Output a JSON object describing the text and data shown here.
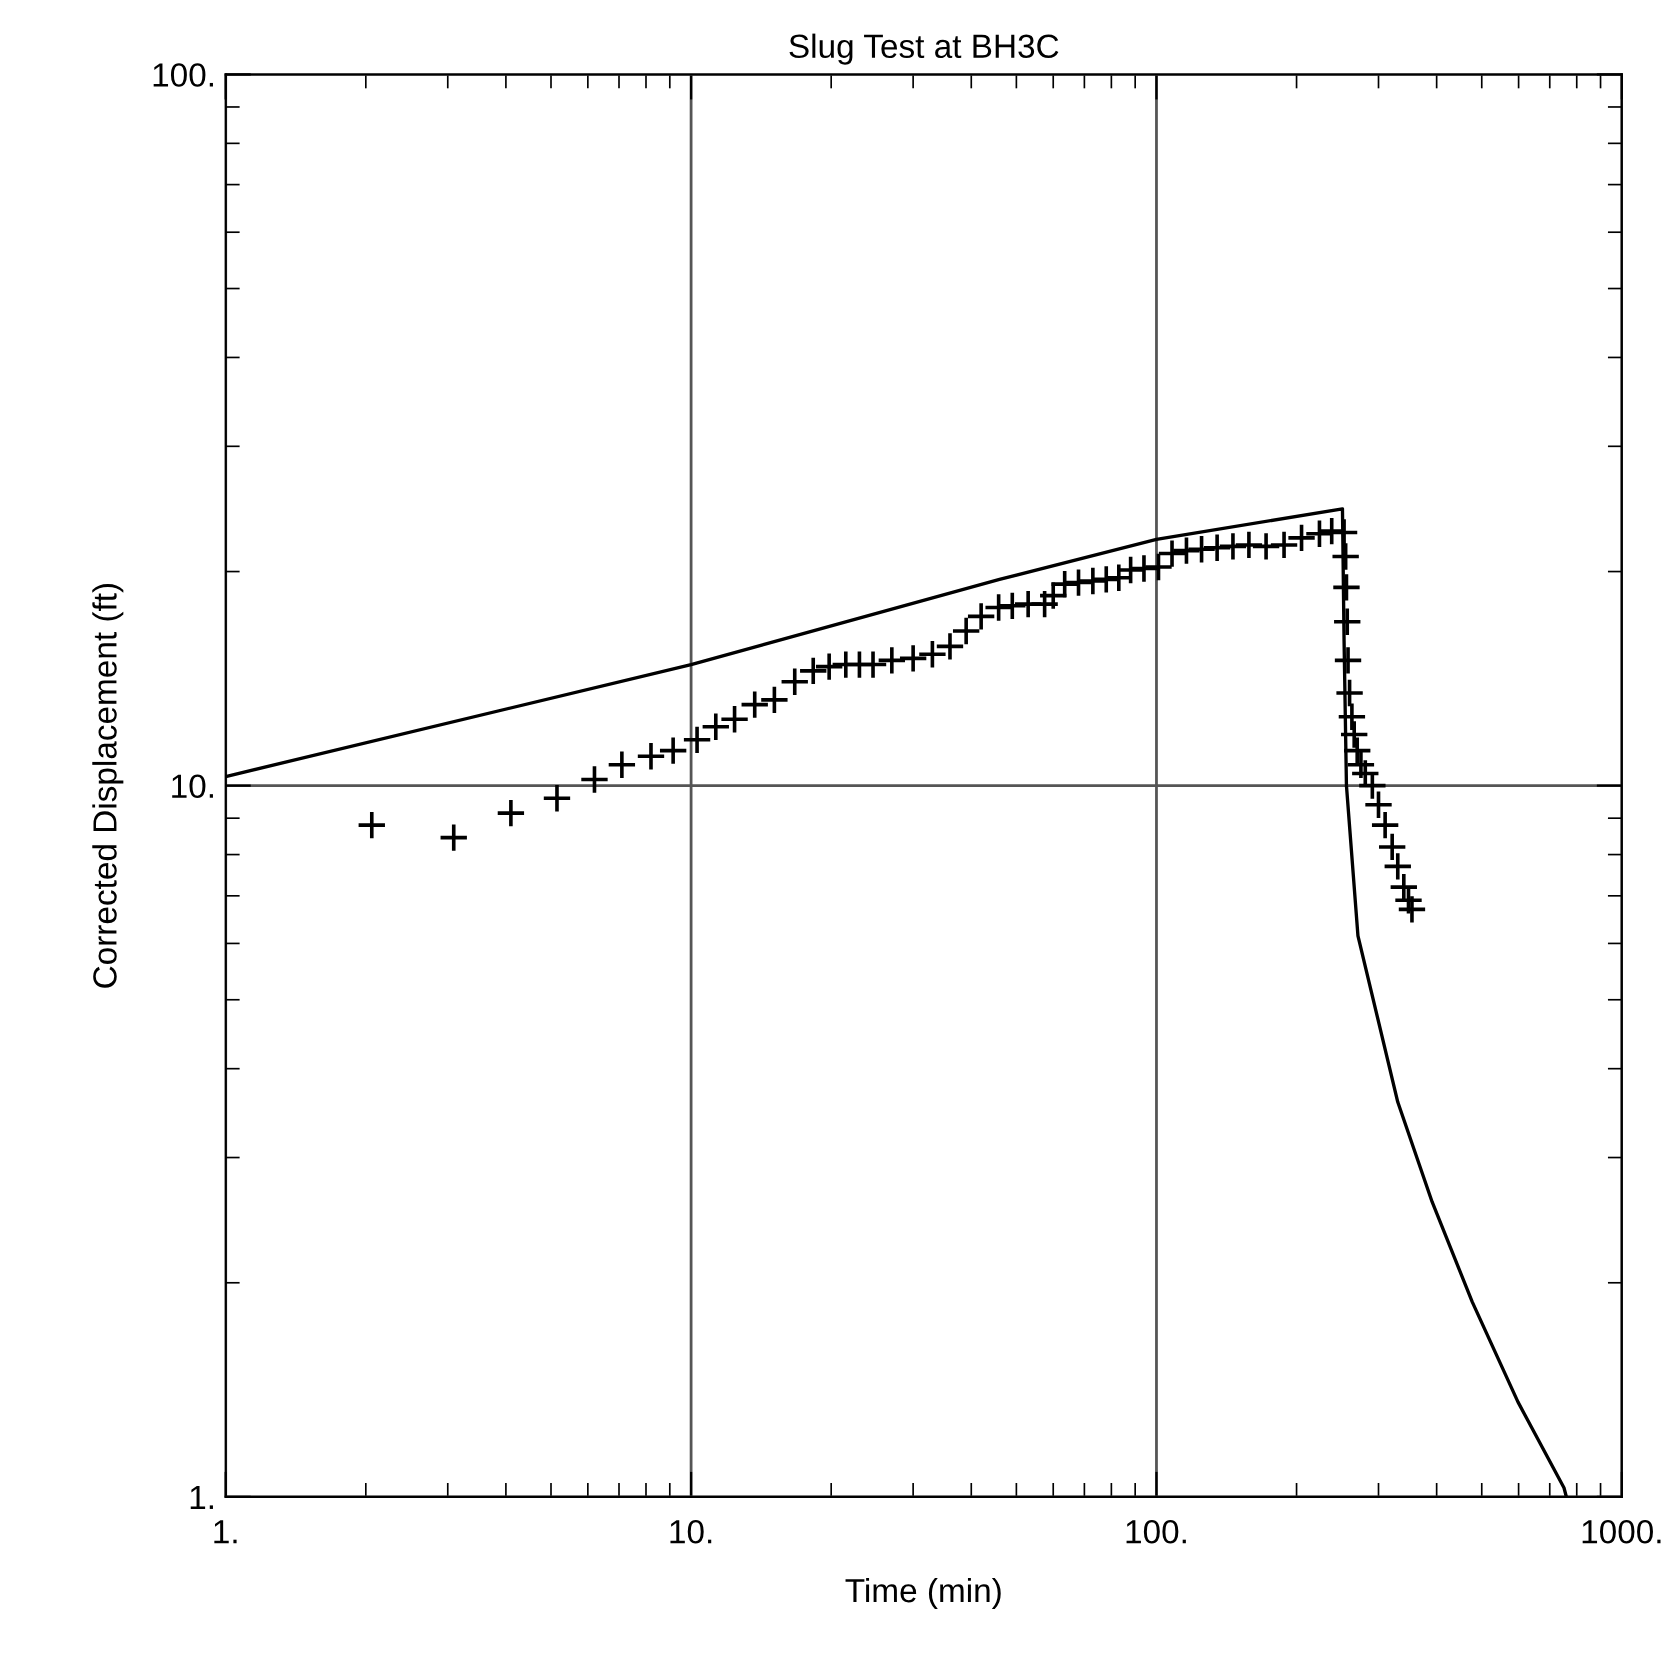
{
  "chart_data": {
    "type": "scatter",
    "title": "Slug Test at BH3C",
    "xlabel": "Time (min)",
    "ylabel": "Corrected Displacement (ft)",
    "log": "xy",
    "grid": true,
    "xlim": [
      1,
      1000
    ],
    "ylim": [
      1,
      100
    ],
    "xticks": [
      {
        "value": 1,
        "label": "1."
      },
      {
        "value": 10,
        "label": "10."
      },
      {
        "value": 100,
        "label": "100."
      },
      {
        "value": 1000,
        "label": "1000."
      }
    ],
    "yticks": [
      {
        "value": 1,
        "label": "1."
      },
      {
        "value": 10,
        "label": "10."
      },
      {
        "value": 100,
        "label": "100."
      }
    ],
    "series": [
      {
        "color": "#000000",
        "marker": "cross",
        "x": [
          2.06,
          3.09,
          4.1,
          5.15,
          6.2,
          7.1,
          8.2,
          9.15,
          10.3,
          11.3,
          12.4,
          13.7,
          15.1,
          16.7,
          18.3,
          19.8,
          21.5,
          23,
          24.6,
          27,
          30,
          33,
          36,
          39,
          42,
          45.8,
          49,
          53,
          57.5,
          60,
          63.5,
          68,
          73,
          78,
          83,
          88,
          94,
          101,
          108,
          116,
          125,
          135,
          146,
          158,
          172,
          188,
          205,
          224,
          238,
          253,
          255,
          256,
          257,
          258,
          260,
          263,
          266,
          270,
          275,
          281,
          291,
          300,
          310,
          321,
          330,
          340,
          348,
          354
        ],
        "values": [
          8.8,
          8.45,
          9.15,
          9.6,
          10.2,
          10.7,
          11.0,
          11.2,
          11.6,
          12.1,
          12.4,
          13.0,
          13.2,
          14.0,
          14.5,
          14.7,
          14.8,
          14.8,
          14.8,
          15.0,
          15.1,
          15.3,
          15.7,
          16.5,
          17.3,
          17.8,
          17.9,
          18.0,
          18.0,
          18.5,
          19.2,
          19.3,
          19.4,
          19.5,
          19.6,
          20.1,
          20.2,
          20.3,
          21.2,
          21.4,
          21.5,
          21.6,
          21.7,
          21.8,
          21.7,
          21.8,
          22.3,
          22.6,
          22.8,
          22.7,
          21.0,
          19.0,
          17.0,
          15.0,
          13.5,
          12.5,
          11.8,
          11.2,
          10.7,
          10.4,
          10.0,
          9.4,
          8.8,
          8.2,
          7.7,
          7.2,
          6.9,
          6.7
        ]
      },
      {
        "type": "line",
        "color": "#000000",
        "marker": "none",
        "line_style": "solid",
        "x": [
          1,
          10,
          46,
          100,
          251,
          253,
          256,
          271,
          330,
          391,
          477,
          598,
          751,
          760
        ],
        "values": [
          10.3,
          14.8,
          19.5,
          22.2,
          24.5,
          16,
          10,
          6.15,
          3.59,
          2.6,
          1.88,
          1.36,
          1.03,
          1.0
        ]
      }
    ]
  }
}
